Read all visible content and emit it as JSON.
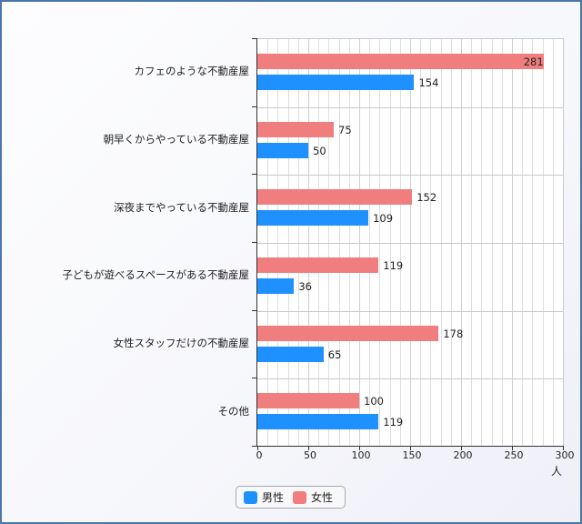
{
  "chart_data": {
    "type": "bar",
    "orientation": "horizontal",
    "title": "",
    "xlabel": "人",
    "ylabel": "",
    "xlim": [
      0,
      300
    ],
    "xticks": [
      0,
      50,
      100,
      150,
      200,
      250,
      300
    ],
    "grid": true,
    "legend_position": "bottom-left",
    "categories": [
      "カフェのような不動産屋",
      "朝早くからやっている不動産屋",
      "深夜までやっている不動産屋",
      "子どもが遊べるスペースがある不動産屋",
      "女性スタッフだけの不動産屋",
      "その他"
    ],
    "series": [
      {
        "name": "男性",
        "color": "#1e90ff",
        "values": [
          154,
          50,
          109,
          36,
          65,
          119
        ]
      },
      {
        "name": "女性",
        "color": "#f07e7e",
        "values": [
          281,
          75,
          152,
          119,
          178,
          100
        ]
      }
    ]
  },
  "legend": {
    "male_label": "男性",
    "female_label": "女性"
  },
  "axis": {
    "unit": "人",
    "ticks": [
      "0",
      "50",
      "100",
      "150",
      "200",
      "250",
      "300"
    ]
  }
}
